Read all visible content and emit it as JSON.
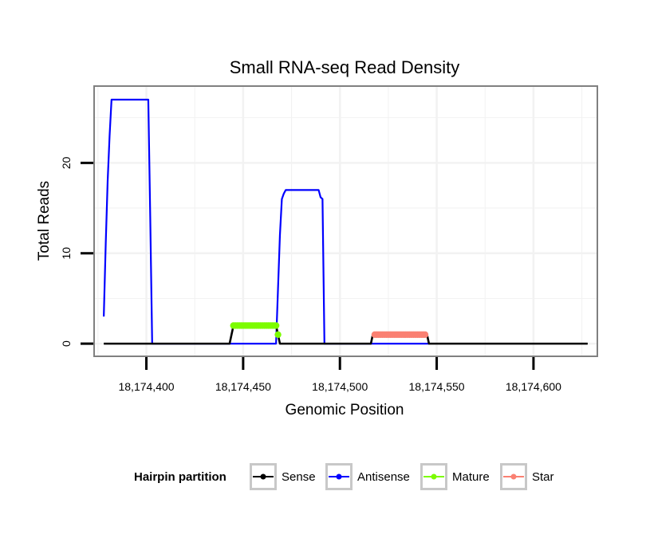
{
  "chart_data": {
    "type": "line",
    "title": "Small RNA-seq Read Density",
    "xlabel": "Genomic Position",
    "ylabel": "Total Reads",
    "xlim": [
      18174373,
      18174633
    ],
    "ylim": [
      -1.4,
      28.5
    ],
    "x_ticks": [
      18174400,
      18174450,
      18174500,
      18174550,
      18174600
    ],
    "x_tick_labels": [
      "18,174,400",
      "18,174,450",
      "18,174,500",
      "18,174,550",
      "18,174,600"
    ],
    "y_ticks": [
      0,
      10,
      20
    ],
    "y_tick_labels": [
      "0",
      "10",
      "20"
    ],
    "grid": true,
    "legend": {
      "title": "Hairpin partition",
      "placement": "bottom",
      "entries": [
        "Sense",
        "Antisense",
        "Mature",
        "Star"
      ]
    },
    "colors": {
      "Sense": "#000000",
      "Antisense": "#0000ff",
      "Mature": "#7cfc00",
      "Star": "#fa8072",
      "panel_border": "#808080",
      "grid": "#f2f2f2"
    },
    "series": [
      {
        "name": "Sense",
        "type": "line",
        "x": [
          18174378,
          18174443,
          18174444,
          18174445,
          18174446,
          18174466,
          18174467,
          18174468,
          18174469,
          18174470,
          18174516,
          18174517,
          18174518,
          18174544,
          18174545,
          18174546,
          18174628
        ],
        "y": [
          0,
          0,
          1,
          2,
          2,
          2,
          2,
          1,
          0,
          0,
          0,
          1,
          1,
          1,
          1,
          0,
          0
        ]
      },
      {
        "name": "Antisense",
        "type": "line",
        "x": [
          18174378,
          18174379,
          18174380,
          18174381,
          18174382,
          18174400,
          18174401,
          18174402,
          18174403,
          18174443,
          18174444,
          18174467,
          18174468,
          18174469,
          18174470,
          18174471,
          18174472,
          18174488,
          18174489,
          18174490,
          18174491,
          18174492,
          18174516,
          18174517,
          18174545,
          18174546
        ],
        "y": [
          3,
          11,
          18,
          23,
          27,
          27,
          27,
          14,
          0,
          0,
          0,
          0,
          6,
          12,
          16,
          16.6,
          17,
          17,
          17,
          16.2,
          16,
          0,
          0,
          0,
          0,
          0
        ]
      },
      {
        "name": "Mature",
        "type": "points",
        "x": [
          18174445,
          18174446,
          18174447,
          18174448,
          18174449,
          18174450,
          18174451,
          18174452,
          18174453,
          18174454,
          18174455,
          18174456,
          18174457,
          18174458,
          18174459,
          18174460,
          18174461,
          18174462,
          18174463,
          18174464,
          18174465,
          18174466,
          18174467,
          18174468
        ],
        "y": [
          2,
          2,
          2,
          2,
          2,
          2,
          2,
          2,
          2,
          2,
          2,
          2,
          2,
          2,
          2,
          2,
          2,
          2,
          2,
          2,
          2,
          2,
          2,
          1
        ]
      },
      {
        "name": "Star",
        "type": "points",
        "x": [
          18174518,
          18174519,
          18174520,
          18174521,
          18174522,
          18174523,
          18174524,
          18174525,
          18174526,
          18174527,
          18174528,
          18174529,
          18174530,
          18174531,
          18174532,
          18174533,
          18174534,
          18174535,
          18174536,
          18174537,
          18174538,
          18174539,
          18174540,
          18174541,
          18174542,
          18174543,
          18174544
        ],
        "y": [
          1,
          1,
          1,
          1,
          1,
          1,
          1,
          1,
          1,
          1,
          1,
          1,
          1,
          1,
          1,
          1,
          1,
          1,
          1,
          1,
          1,
          1,
          1,
          1,
          1,
          1,
          1
        ]
      }
    ]
  }
}
